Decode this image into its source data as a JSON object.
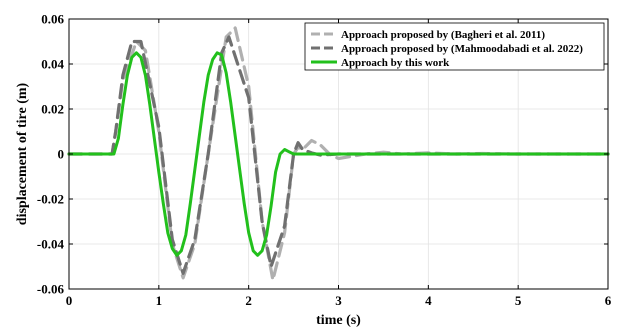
{
  "chart_data": {
    "type": "line",
    "title": "",
    "xlabel": "time (s)",
    "ylabel": "displacement of tire (m)",
    "xlim": [
      0,
      6
    ],
    "ylim": [
      -0.06,
      0.06
    ],
    "xticks": [
      0,
      1,
      2,
      3,
      4,
      5,
      6
    ],
    "xtick_labels": [
      "0",
      "1",
      "2",
      "3",
      "4",
      "5",
      "6"
    ],
    "yticks": [
      -0.06,
      -0.04,
      -0.02,
      0,
      0.02,
      0.04,
      0.06
    ],
    "ytick_labels": [
      "-0.06",
      "-0.04",
      "-0.02",
      "0",
      "0.02",
      "0.04",
      "0.06"
    ],
    "grid": true,
    "legend_position": "top-right",
    "series": [
      {
        "name": "Approach proposed by (Bagheri et al. 2011)",
        "color": "#b0b0b0",
        "style": "dashed",
        "x": [
          0,
          0.48,
          0.52,
          0.6,
          0.75,
          0.85,
          1.0,
          1.15,
          1.27,
          1.4,
          1.55,
          1.75,
          1.85,
          2.0,
          2.15,
          2.27,
          2.4,
          2.5,
          2.55,
          2.6,
          2.7,
          2.8,
          2.9,
          3.0,
          3.15,
          3.3,
          3.5,
          3.7,
          4.0,
          4.3,
          4.6,
          5.0,
          6.0
        ],
        "y": [
          0,
          0,
          0.01,
          0.033,
          0.05,
          0.046,
          0.01,
          -0.04,
          -0.055,
          -0.04,
          0.0,
          0.052,
          0.056,
          0.03,
          -0.03,
          -0.056,
          -0.035,
          0.0,
          0.003,
          0.002,
          0.006,
          0.004,
          0.0,
          -0.002,
          -0.001,
          0.0,
          0.0008,
          0.0,
          0.0005,
          0.0,
          0.0002,
          0.0,
          0.0
        ]
      },
      {
        "name": "Approach proposed by (Mahmoodabadi et al. 2022)",
        "color": "#707070",
        "style": "dashed",
        "x": [
          0,
          0.48,
          0.52,
          0.6,
          0.7,
          0.8,
          1.0,
          1.15,
          1.27,
          1.4,
          1.55,
          1.7,
          1.78,
          2.0,
          2.15,
          2.25,
          2.4,
          2.5,
          2.55,
          2.6,
          2.7,
          2.8,
          3.0,
          3.5,
          6.0
        ],
        "y": [
          0,
          0,
          0.01,
          0.035,
          0.05,
          0.05,
          0.012,
          -0.038,
          -0.053,
          -0.038,
          0.0,
          0.045,
          0.052,
          0.025,
          -0.03,
          -0.05,
          -0.032,
          0.0,
          0.005,
          0.002,
          0.0005,
          -0.0005,
          0.0,
          0.0,
          0.0
        ]
      },
      {
        "name": "Approach by this work",
        "color": "#22c01c",
        "style": "solid",
        "x": [
          0,
          0.5,
          0.55,
          0.6,
          0.65,
          0.7,
          0.75,
          0.8,
          0.85,
          0.9,
          0.95,
          1.0,
          1.05,
          1.1,
          1.15,
          1.2,
          1.25,
          1.3,
          1.35,
          1.4,
          1.45,
          1.5,
          1.55,
          1.6,
          1.65,
          1.7,
          1.75,
          1.8,
          1.85,
          1.9,
          1.95,
          2.0,
          2.05,
          2.1,
          2.15,
          2.2,
          2.25,
          2.3,
          2.35,
          2.4,
          2.45,
          2.5,
          2.55,
          2.6,
          2.7,
          3.0,
          4.0,
          5.0,
          6.0
        ],
        "y": [
          0,
          0,
          0.007,
          0.022,
          0.035,
          0.043,
          0.045,
          0.043,
          0.035,
          0.022,
          0.007,
          -0.008,
          -0.022,
          -0.035,
          -0.042,
          -0.045,
          -0.043,
          -0.036,
          -0.022,
          -0.007,
          0.008,
          0.023,
          0.035,
          0.042,
          0.045,
          0.044,
          0.036,
          0.023,
          0.008,
          -0.007,
          -0.022,
          -0.035,
          -0.043,
          -0.045,
          -0.043,
          -0.036,
          -0.023,
          -0.008,
          0.0,
          0.002,
          0.001,
          0.0,
          0.0,
          0.0,
          0.0,
          0.0,
          0.0,
          0.0,
          0.0
        ]
      }
    ]
  }
}
